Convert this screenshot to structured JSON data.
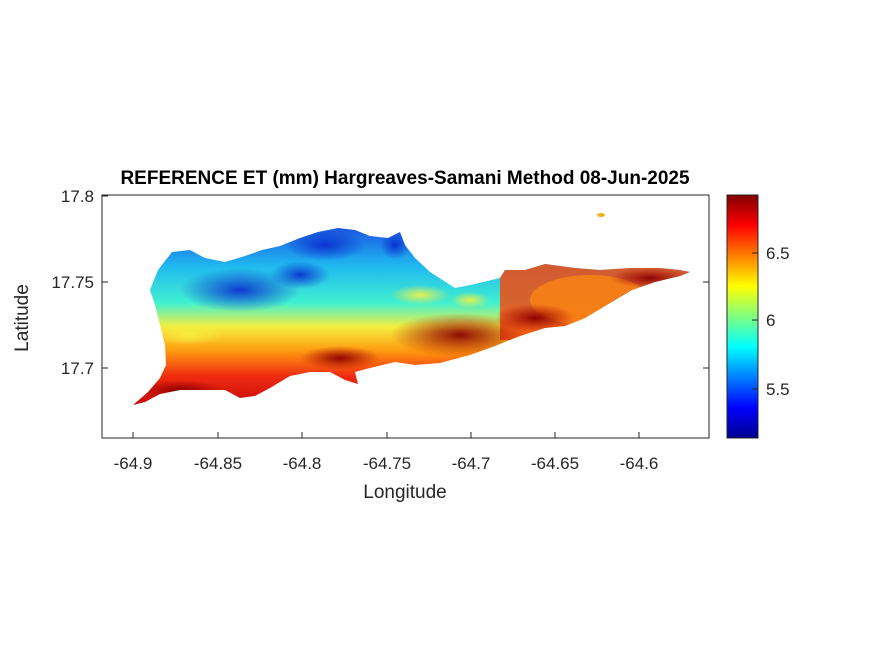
{
  "title": "REFERENCE ET (mm) Hargreaves-Samani Method  08-Jun-2025",
  "map": {
    "xlabel": "Longitude",
    "ylabel": "Latitude",
    "xlim": [
      -64.92,
      -64.56
    ],
    "ylim": [
      17.66,
      17.8
    ],
    "xticks": [
      -64.9,
      -64.85,
      -64.8,
      -64.75,
      -64.7,
      -64.65,
      -64.6
    ],
    "xtick_labels": [
      "-64.9",
      "-64.85",
      "-64.8",
      "-64.75",
      "-64.7",
      "-64.65",
      "-64.6"
    ],
    "yticks": [
      17.7,
      17.75,
      17.8
    ],
    "ytick_labels": [
      "17.7",
      "17.75",
      "17.8"
    ],
    "colormap": "jet",
    "colorbar": {
      "range": [
        5.1,
        6.92
      ],
      "ticks": [
        5.5,
        6,
        6.5
      ],
      "tick_labels": [
        "5.5",
        "6",
        "6.5"
      ]
    },
    "field_description_values": {
      "north_west_interior": 5.5,
      "south_coast_strip": 6.6,
      "east_tip": 6.85
    }
  }
}
